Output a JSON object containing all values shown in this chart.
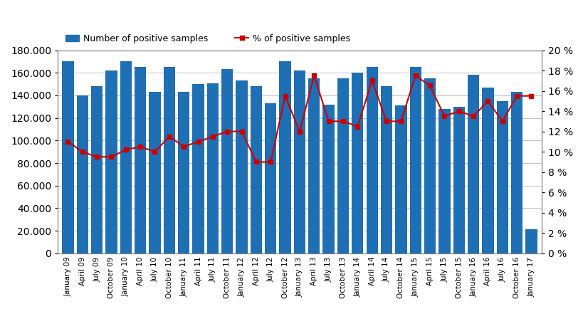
{
  "x_labels": [
    "January 09",
    "April 09",
    "July 09",
    "October 09",
    "January 10",
    "April 10",
    "July 10",
    "October 10",
    "January 11",
    "April 11",
    "July 11",
    "October 11",
    "January 12",
    "April 12",
    "July 12",
    "October 12",
    "January 13",
    "April 13",
    "July 13",
    "October 13",
    "January 14",
    "April 14",
    "July 14",
    "October 14",
    "January 15",
    "April 15",
    "July 15",
    "October 15",
    "January 16",
    "April 16",
    "July 16",
    "October 16",
    "January 17"
  ],
  "bar_values": [
    170000,
    140000,
    148000,
    162000,
    170000,
    165000,
    143000,
    165000,
    143000,
    150000,
    151000,
    163000,
    153000,
    148000,
    133000,
    170000,
    162000,
    155000,
    132000,
    155000,
    160000,
    165000,
    148000,
    131000,
    165000,
    155000,
    128000,
    130000,
    158000,
    147000,
    135000,
    143000,
    21000
  ],
  "line_values": [
    11.0,
    10.0,
    9.5,
    9.5,
    10.2,
    10.5,
    10.0,
    11.5,
    10.5,
    11.0,
    11.5,
    12.0,
    12.0,
    9.0,
    9.0,
    15.5,
    12.0,
    17.5,
    13.0,
    13.0,
    12.5,
    17.0,
    13.0,
    13.0,
    17.5,
    16.5,
    13.5,
    14.0,
    13.5,
    15.0,
    13.0,
    15.5,
    15.5
  ],
  "bar_color": "#1F6FB5",
  "line_color": "#CC0000",
  "marker_color": "#CC0000",
  "bg_color": "#FFFFFF",
  "grid_color": "#AAAAAA",
  "left_ylim": [
    0,
    180000
  ],
  "right_ylim": [
    0,
    20
  ],
  "left_yticks": [
    0,
    20000,
    40000,
    60000,
    80000,
    100000,
    120000,
    140000,
    160000,
    180000
  ],
  "right_yticks": [
    0,
    2,
    4,
    6,
    8,
    10,
    12,
    14,
    16,
    18,
    20
  ],
  "legend_bar_label": "Number of positive samples",
  "legend_line_label": "% of positive samples"
}
